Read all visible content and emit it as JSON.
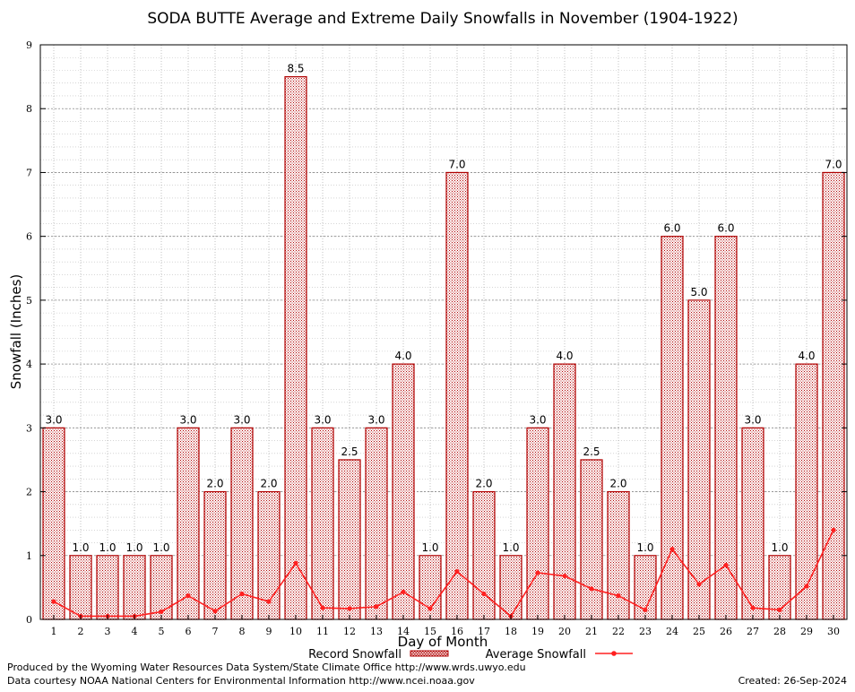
{
  "chart_data": {
    "type": "bar",
    "title": "SODA BUTTE Average and Extreme Daily Snowfalls in November (1904-1922)",
    "xlabel": "Day of Month",
    "ylabel": "Snowfall (Inches)",
    "ylim": [
      0,
      9
    ],
    "yticks": [
      0,
      1,
      2,
      3,
      4,
      5,
      6,
      7,
      8,
      9
    ],
    "grid": true,
    "legend_position": "bottom",
    "categories": [
      "1",
      "2",
      "3",
      "4",
      "5",
      "6",
      "7",
      "8",
      "9",
      "10",
      "11",
      "12",
      "13",
      "14",
      "15",
      "16",
      "17",
      "18",
      "19",
      "20",
      "21",
      "22",
      "23",
      "24",
      "25",
      "26",
      "27",
      "28",
      "29",
      "30"
    ],
    "series": [
      {
        "name": "Record Snowfall",
        "type": "bar",
        "color": "#c00000",
        "values": [
          3.0,
          1.0,
          1.0,
          1.0,
          1.0,
          3.0,
          2.0,
          3.0,
          2.0,
          8.5,
          3.0,
          2.5,
          3.0,
          4.0,
          1.0,
          7.0,
          2.0,
          1.0,
          3.0,
          4.0,
          2.5,
          2.0,
          1.0,
          6.0,
          5.0,
          6.0,
          3.0,
          1.0,
          4.0,
          7.0
        ],
        "labels": [
          "3.0",
          "1.0",
          "1.0",
          "1.0",
          "1.0",
          "3.0",
          "2.0",
          "3.0",
          "2.0",
          "8.5",
          "3.0",
          "2.5",
          "3.0",
          "4.0",
          "1.0",
          "7.0",
          "2.0",
          "1.0",
          "3.0",
          "4.0",
          "2.5",
          "2.0",
          "1.0",
          "6.0",
          "5.0",
          "6.0",
          "3.0",
          "1.0",
          "4.0",
          "7.0"
        ]
      },
      {
        "name": "Average Snowfall",
        "type": "line",
        "color": "#ff2020",
        "values": [
          0.28,
          0.05,
          0.05,
          0.05,
          0.12,
          0.37,
          0.13,
          0.4,
          0.28,
          0.88,
          0.18,
          0.17,
          0.2,
          0.43,
          0.17,
          0.75,
          0.4,
          0.05,
          0.73,
          0.68,
          0.48,
          0.37,
          0.15,
          1.1,
          0.55,
          0.85,
          0.18,
          0.15,
          0.52,
          1.4
        ]
      }
    ]
  },
  "footer": {
    "line1": "Produced by the Wyoming Water Resources Data System/State Climate Office http://www.wrds.uwyo.edu",
    "line2": "Data courtesy NOAA National Centers for Environmental Information http://www.ncei.noaa.gov",
    "created": "Created:  26-Sep-2024"
  }
}
